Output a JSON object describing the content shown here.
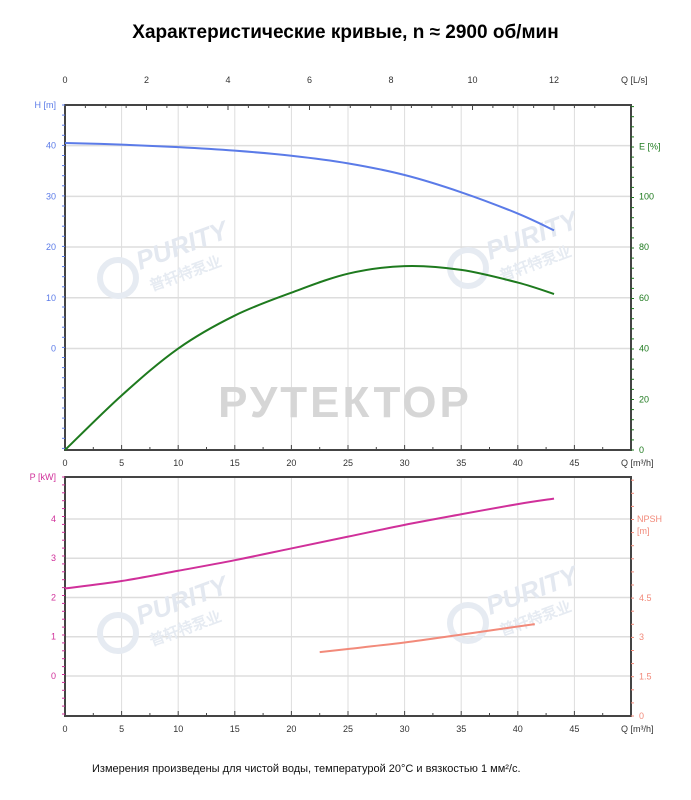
{
  "title": "Характеристические кривые, n ≈ 2900 об/мин",
  "footnote": "Измерения произведены для чистой воды, температурой 20°C и вязкостью 1 мм²/с.",
  "watermarks": {
    "center": "РУТЕКТОР",
    "logo": "PURITY",
    "logo_sub": "普轩特泵业"
  },
  "colors": {
    "head": "#5b7be8",
    "efficiency": "#1e7a1e",
    "power": "#d0309a",
    "npsh": "#f28a7a",
    "axis": "#444444",
    "grid": "#dddddd"
  },
  "chart_data": [
    {
      "type": "line",
      "x_axis_bottom": {
        "label": "Q [m³/h]",
        "range": [
          0,
          50
        ],
        "ticks": [
          0,
          5,
          10,
          15,
          20,
          25,
          30,
          35,
          40,
          45
        ]
      },
      "x_axis_top": {
        "label": "Q [L/s]",
        "range": [
          0,
          13.89
        ],
        "ticks": [
          0,
          2,
          4,
          6,
          8,
          10,
          12
        ]
      },
      "y_axis_left": {
        "label": "H [m]",
        "range": [
          -20,
          48
        ],
        "ticks": [
          0,
          10,
          20,
          30,
          40
        ]
      },
      "y_axis_right": {
        "label": "E [%]",
        "range": [
          0,
          136
        ],
        "ticks": [
          0,
          20,
          40,
          60,
          80,
          100
        ]
      },
      "grid": true,
      "series": [
        {
          "name": "H [m]",
          "axis": "left",
          "x": [
            0,
            5,
            10,
            15,
            20,
            25,
            30,
            35,
            40,
            43.2
          ],
          "y": [
            40.5,
            40.2,
            39.7,
            39.0,
            38.0,
            36.5,
            34.2,
            30.8,
            26.6,
            23.3
          ]
        },
        {
          "name": "E [%]",
          "axis": "right",
          "x": [
            0,
            5,
            10,
            15,
            20,
            25,
            30,
            35,
            40,
            43.2
          ],
          "y": [
            0,
            21.5,
            40,
            53,
            62,
            69.5,
            72.5,
            71,
            66,
            61.5
          ]
        }
      ]
    },
    {
      "type": "line",
      "x_axis_bottom": {
        "label": "Q [m³/h]",
        "range": [
          0,
          50
        ],
        "ticks": [
          0,
          5,
          10,
          15,
          20,
          25,
          30,
          35,
          40,
          45
        ]
      },
      "y_axis_left": {
        "label": "P [kW]",
        "range": [
          -1.02,
          5.07
        ],
        "ticks": [
          0,
          1,
          2,
          3,
          4
        ]
      },
      "y_axis_right": {
        "label": "NPSH [m]",
        "range": [
          0,
          9.1
        ],
        "ticks": [
          0,
          1.5,
          3,
          4.5
        ]
      },
      "grid": true,
      "series": [
        {
          "name": "P [kW]",
          "axis": "left",
          "x": [
            0,
            5,
            10,
            15,
            20,
            25,
            30,
            35,
            40,
            43.2
          ],
          "y": [
            2.23,
            2.42,
            2.68,
            2.95,
            3.25,
            3.55,
            3.85,
            4.12,
            4.38,
            4.52
          ]
        },
        {
          "name": "NPSH [m]",
          "axis": "right",
          "x": [
            22.5,
            25,
            30,
            35,
            41.5
          ],
          "y": [
            2.43,
            2.55,
            2.8,
            3.1,
            3.5
          ]
        }
      ]
    }
  ]
}
